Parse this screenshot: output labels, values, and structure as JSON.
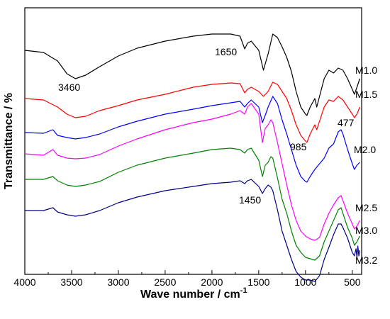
{
  "chart_data": {
    "type": "line",
    "xlabel_main": "Wave number / cm",
    "xlabel_sup": "-1",
    "ylabel": "Transmittance / %",
    "xlim": [
      4000,
      400
    ],
    "x_inverted": true,
    "y_ticks_shown": false,
    "x_ticks": [
      4000,
      3500,
      3000,
      2500,
      2000,
      1500,
      1000,
      500
    ],
    "x_tick_labels": [
      "4000",
      "3500",
      "3000",
      "2500",
      "2000",
      "1500",
      "1000",
      "500"
    ],
    "series": [
      {
        "name": "M1.0",
        "color": "#000000",
        "points": [
          [
            4000,
            60
          ],
          [
            3800,
            63
          ],
          [
            3650,
            75
          ],
          [
            3550,
            93
          ],
          [
            3460,
            100
          ],
          [
            3350,
            95
          ],
          [
            3200,
            83
          ],
          [
            3000,
            68
          ],
          [
            2800,
            57
          ],
          [
            2500,
            47
          ],
          [
            2200,
            40
          ],
          [
            2000,
            37
          ],
          [
            1800,
            37
          ],
          [
            1700,
            40
          ],
          [
            1650,
            58
          ],
          [
            1620,
            50
          ],
          [
            1580,
            47
          ],
          [
            1500,
            60
          ],
          [
            1450,
            88
          ],
          [
            1400,
            65
          ],
          [
            1350,
            37
          ],
          [
            1300,
            42
          ],
          [
            1250,
            55
          ],
          [
            1200,
            70
          ],
          [
            1150,
            90
          ],
          [
            1100,
            118
          ],
          [
            1050,
            140
          ],
          [
            1000,
            150
          ],
          [
            985,
            152
          ],
          [
            950,
            140
          ],
          [
            900,
            128
          ],
          [
            880,
            140
          ],
          [
            850,
            125
          ],
          [
            800,
            100
          ],
          [
            750,
            88
          ],
          [
            700,
            92
          ],
          [
            650,
            85
          ],
          [
            600,
            88
          ],
          [
            550,
            100
          ],
          [
            500,
            115
          ],
          [
            477,
            122
          ],
          [
            450,
            112
          ],
          [
            420,
            100
          ]
        ]
      },
      {
        "name": "M1.5",
        "color": "#ff0000",
        "points": [
          [
            4000,
            128
          ],
          [
            3800,
            130
          ],
          [
            3650,
            140
          ],
          [
            3550,
            150
          ],
          [
            3460,
            155
          ],
          [
            3350,
            153
          ],
          [
            3200,
            145
          ],
          [
            3000,
            138
          ],
          [
            2800,
            130
          ],
          [
            2500,
            122
          ],
          [
            2200,
            112
          ],
          [
            2000,
            108
          ],
          [
            1800,
            106
          ],
          [
            1700,
            107
          ],
          [
            1650,
            120
          ],
          [
            1620,
            115
          ],
          [
            1580,
            112
          ],
          [
            1500,
            118
          ],
          [
            1450,
            125
          ],
          [
            1400,
            118
          ],
          [
            1350,
            105
          ],
          [
            1300,
            108
          ],
          [
            1250,
            118
          ],
          [
            1200,
            128
          ],
          [
            1150,
            145
          ],
          [
            1100,
            165
          ],
          [
            1050,
            180
          ],
          [
            1000,
            188
          ],
          [
            985,
            190
          ],
          [
            950,
            178
          ],
          [
            900,
            165
          ],
          [
            880,
            172
          ],
          [
            850,
            160
          ],
          [
            800,
            140
          ],
          [
            750,
            130
          ],
          [
            700,
            132
          ],
          [
            650,
            125
          ],
          [
            600,
            130
          ],
          [
            550,
            140
          ],
          [
            500,
            150
          ],
          [
            477,
            155
          ],
          [
            450,
            150
          ],
          [
            420,
            140
          ]
        ]
      },
      {
        "name": "M2.0",
        "color": "#0000ff",
        "points": [
          [
            4000,
            176
          ],
          [
            3800,
            177
          ],
          [
            3700,
            172
          ],
          [
            3650,
            180
          ],
          [
            3550,
            183
          ],
          [
            3460,
            185
          ],
          [
            3350,
            183
          ],
          [
            3200,
            178
          ],
          [
            3000,
            168
          ],
          [
            2800,
            160
          ],
          [
            2500,
            150
          ],
          [
            2200,
            143
          ],
          [
            2000,
            138
          ],
          [
            1800,
            134
          ],
          [
            1700,
            132
          ],
          [
            1650,
            140
          ],
          [
            1620,
            135
          ],
          [
            1580,
            130
          ],
          [
            1500,
            140
          ],
          [
            1460,
            162
          ],
          [
            1420,
            148
          ],
          [
            1400,
            140
          ],
          [
            1350,
            125
          ],
          [
            1300,
            135
          ],
          [
            1250,
            158
          ],
          [
            1200,
            178
          ],
          [
            1150,
            200
          ],
          [
            1100,
            222
          ],
          [
            1050,
            238
          ],
          [
            1000,
            245
          ],
          [
            985,
            246
          ],
          [
            950,
            238
          ],
          [
            900,
            228
          ],
          [
            850,
            220
          ],
          [
            800,
            212
          ],
          [
            750,
            198
          ],
          [
            700,
            192
          ],
          [
            650,
            175
          ],
          [
            620,
            172
          ],
          [
            600,
            178
          ],
          [
            550,
            200
          ],
          [
            500,
            220
          ],
          [
            477,
            228
          ],
          [
            450,
            222
          ],
          [
            420,
            218
          ]
        ]
      },
      {
        "name": "M2.5",
        "color": "#ff00ff",
        "points": [
          [
            4000,
            206
          ],
          [
            3800,
            208
          ],
          [
            3700,
            200
          ],
          [
            3650,
            208
          ],
          [
            3550,
            212
          ],
          [
            3460,
            213
          ],
          [
            3350,
            212
          ],
          [
            3200,
            207
          ],
          [
            3000,
            195
          ],
          [
            2800,
            185
          ],
          [
            2500,
            172
          ],
          [
            2200,
            162
          ],
          [
            2000,
            157
          ],
          [
            1800,
            150
          ],
          [
            1700,
            145
          ],
          [
            1650,
            150
          ],
          [
            1620,
            140
          ],
          [
            1580,
            135
          ],
          [
            1500,
            150
          ],
          [
            1460,
            190
          ],
          [
            1430,
            170
          ],
          [
            1400,
            165
          ],
          [
            1370,
            158
          ],
          [
            1350,
            162
          ],
          [
            1300,
            190
          ],
          [
            1250,
            220
          ],
          [
            1200,
            250
          ],
          [
            1150,
            278
          ],
          [
            1100,
            300
          ],
          [
            1050,
            315
          ],
          [
            1000,
            322
          ],
          [
            950,
            326
          ],
          [
            900,
            328
          ],
          [
            850,
            324
          ],
          [
            800,
            305
          ],
          [
            750,
            290
          ],
          [
            700,
            278
          ],
          [
            650,
            268
          ],
          [
            620,
            265
          ],
          [
            600,
            272
          ],
          [
            550,
            290
          ],
          [
            500,
            305
          ],
          [
            477,
            312
          ],
          [
            450,
            308
          ],
          [
            420,
            300
          ]
        ]
      },
      {
        "name": "M3.0",
        "color": "#008000",
        "points": [
          [
            4000,
            242
          ],
          [
            3800,
            242
          ],
          [
            3700,
            238
          ],
          [
            3650,
            244
          ],
          [
            3550,
            250
          ],
          [
            3460,
            252
          ],
          [
            3350,
            250
          ],
          [
            3200,
            245
          ],
          [
            3000,
            232
          ],
          [
            2800,
            222
          ],
          [
            2500,
            212
          ],
          [
            2200,
            205
          ],
          [
            2000,
            200
          ],
          [
            1800,
            198
          ],
          [
            1700,
            200
          ],
          [
            1650,
            205
          ],
          [
            1620,
            200
          ],
          [
            1580,
            198
          ],
          [
            1500,
            215
          ],
          [
            1460,
            238
          ],
          [
            1430,
            222
          ],
          [
            1400,
            218
          ],
          [
            1370,
            210
          ],
          [
            1350,
            212
          ],
          [
            1300,
            240
          ],
          [
            1250,
            270
          ],
          [
            1200,
            290
          ],
          [
            1150,
            315
          ],
          [
            1100,
            335
          ],
          [
            1050,
            345
          ],
          [
            1000,
            352
          ],
          [
            950,
            354
          ],
          [
            900,
            356
          ],
          [
            850,
            350
          ],
          [
            800,
            330
          ],
          [
            750,
            315
          ],
          [
            700,
            300
          ],
          [
            650,
            285
          ],
          [
            620,
            282
          ],
          [
            600,
            290
          ],
          [
            550,
            310
          ],
          [
            500,
            325
          ],
          [
            477,
            335
          ],
          [
            450,
            330
          ],
          [
            420,
            322
          ]
        ]
      },
      {
        "name": "M3.2",
        "color": "#000080",
        "points": [
          [
            4000,
            286
          ],
          [
            3800,
            286
          ],
          [
            3700,
            282
          ],
          [
            3650,
            288
          ],
          [
            3550,
            292
          ],
          [
            3460,
            294
          ],
          [
            3350,
            292
          ],
          [
            3200,
            286
          ],
          [
            3000,
            275
          ],
          [
            2800,
            267
          ],
          [
            2500,
            258
          ],
          [
            2200,
            252
          ],
          [
            2000,
            248
          ],
          [
            1800,
            246
          ],
          [
            1700,
            244
          ],
          [
            1650,
            248
          ],
          [
            1620,
            244
          ],
          [
            1580,
            242
          ],
          [
            1500,
            252
          ],
          [
            1460,
            262
          ],
          [
            1430,
            255
          ],
          [
            1400,
            250
          ],
          [
            1370,
            253
          ],
          [
            1350,
            258
          ],
          [
            1300,
            285
          ],
          [
            1250,
            315
          ],
          [
            1200,
            335
          ],
          [
            1150,
            355
          ],
          [
            1100,
            372
          ],
          [
            1050,
            380
          ],
          [
            1000,
            384
          ],
          [
            950,
            384
          ],
          [
            900,
            386
          ],
          [
            850,
            378
          ],
          [
            800,
            355
          ],
          [
            750,
            338
          ],
          [
            700,
            320
          ],
          [
            650,
            305
          ],
          [
            620,
            305
          ],
          [
            600,
            310
          ],
          [
            550,
            325
          ],
          [
            500,
            345
          ],
          [
            477,
            350
          ],
          [
            460,
            340
          ],
          [
            450,
            352
          ],
          [
            440,
            336
          ],
          [
            430,
            350
          ],
          [
            420,
            342
          ]
        ]
      }
    ],
    "annotations": [
      {
        "text": "1650",
        "wn": 1650
      },
      {
        "text": "3460",
        "wn": 3460
      },
      {
        "text": "985",
        "wn": 985
      },
      {
        "text": "477",
        "wn": 477
      },
      {
        "text": "1450",
        "wn": 1450
      }
    ]
  }
}
